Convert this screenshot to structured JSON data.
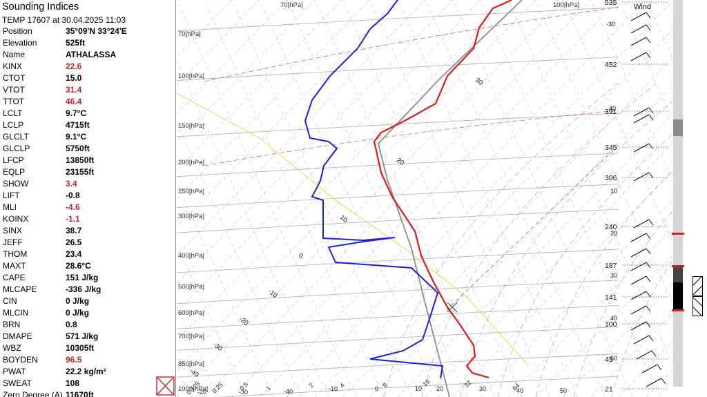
{
  "panel": {
    "title": "Sounding Indices",
    "subtitle": "TEMP 17607 at 30.04.2025 11:03",
    "rows": [
      {
        "label": "Position",
        "value": "35°09'N 33°24'E",
        "warn": false
      },
      {
        "label": "Elevation",
        "value": "525ft",
        "warn": false
      },
      {
        "label": "Name",
        "value": "ATHALASSA",
        "warn": false
      },
      {
        "label": "KINX",
        "value": "22.6",
        "warn": true
      },
      {
        "label": "CTOT",
        "value": "15.0",
        "warn": false
      },
      {
        "label": "VTOT",
        "value": "31.4",
        "warn": true
      },
      {
        "label": "TTOT",
        "value": "46.4",
        "warn": true
      },
      {
        "label": "LCLT",
        "value": "9.7°C",
        "warn": false
      },
      {
        "label": "LCLP",
        "value": "4715ft",
        "warn": false
      },
      {
        "label": "GLCLT",
        "value": "9.1°C",
        "warn": false
      },
      {
        "label": "GLCLP",
        "value": "5750ft",
        "warn": false
      },
      {
        "label": "LFCP",
        "value": "13850ft",
        "warn": false
      },
      {
        "label": "EQLP",
        "value": "23155ft",
        "warn": false
      },
      {
        "label": "SHOW",
        "value": "3.4",
        "warn": true
      },
      {
        "label": "LIFT",
        "value": "-0.8",
        "warn": false
      },
      {
        "label": "MLI",
        "value": "-4.6",
        "warn": true
      },
      {
        "label": "KOINX",
        "value": "-1.1",
        "warn": true
      },
      {
        "label": "SINX",
        "value": "38.7",
        "warn": false
      },
      {
        "label": "JEFF",
        "value": "26.5",
        "warn": false
      },
      {
        "label": "THOM",
        "value": "23.4",
        "warn": false
      },
      {
        "label": "MAXT",
        "value": "28.6°C",
        "warn": false
      },
      {
        "label": "CAPE",
        "value": "151 J/kg",
        "warn": false
      },
      {
        "label": "MLCAPE",
        "value": "-336 J/kg",
        "warn": false
      },
      {
        "label": "CIN",
        "value": "0 J/kg",
        "warn": false
      },
      {
        "label": "MLCIN",
        "value": "0 J/kg",
        "warn": false
      },
      {
        "label": "BRN",
        "value": "0.8",
        "warn": false
      },
      {
        "label": "DMAPE",
        "value": "571 J/kg",
        "warn": false
      },
      {
        "label": "WBZ",
        "value": "10305ft",
        "warn": false
      },
      {
        "label": "BOYDEN",
        "value": "96.5",
        "warn": true
      },
      {
        "label": "PWAT",
        "value": "22.2 kg/m²",
        "warn": false
      },
      {
        "label": "SWEAT",
        "value": "108",
        "warn": false
      },
      {
        "label": "Zero Degree (A)",
        "value": "11670ft",
        "warn": false
      }
    ]
  },
  "chart_data": {
    "type": "line",
    "title": "",
    "xlabel": "",
    "ylabel": "",
    "wind_label": "Wind",
    "pressure_labels": [
      "70[hPa]",
      "100[hPa]",
      "70[hPa]",
      "100[hPa]",
      "150[hPa]",
      "200[hPa]",
      "250[hPa]",
      "300[hPa]",
      "400[hPa]",
      "500[hPa]",
      "600[hPa]",
      "700[hPa]",
      "850[hPa]",
      "1000[hPa]"
    ],
    "pressure_levels": [
      70,
      100,
      70,
      100,
      150,
      200,
      250,
      300,
      400,
      500,
      600,
      700,
      850,
      1000
    ],
    "isotherm_labels": [
      "30",
      "20",
      "10",
      "0",
      "-10",
      "-20",
      "-30",
      "-40"
    ],
    "bottom_tick_labels": [
      "-40",
      "-30",
      "-20",
      "-10",
      "0",
      "10",
      "20",
      "30",
      "40",
      "50",
      "0.25",
      "0.5",
      "1",
      "2",
      "4",
      "8",
      "16",
      "32",
      "64",
      "0.125"
    ],
    "height_labels": [
      "535",
      "452",
      "391",
      "345",
      "306",
      "240",
      "187",
      "141",
      "100",
      "45",
      "21"
    ],
    "height_sub_labels": [
      "-30",
      "40",
      "10",
      "20",
      "30",
      "40",
      "50"
    ],
    "temperature_series": [
      {
        "p": 70,
        "t": 4
      },
      {
        "p": 100,
        "t": -8
      },
      {
        "p": 150,
        "t": -38
      },
      {
        "p": 200,
        "t": -58
      },
      {
        "p": 250,
        "t": -50
      },
      {
        "p": 300,
        "t": -40
      },
      {
        "p": 400,
        "t": -22
      },
      {
        "p": 500,
        "t": -10
      },
      {
        "p": 600,
        "t": 0
      },
      {
        "p": 700,
        "t": 9
      },
      {
        "p": 850,
        "t": 19
      },
      {
        "p": 1000,
        "t": 28
      }
    ],
    "dewpoint_series": [
      {
        "p": 70,
        "t": -75
      },
      {
        "p": 100,
        "t": -72
      },
      {
        "p": 150,
        "t": -70
      },
      {
        "p": 200,
        "t": -66
      },
      {
        "p": 250,
        "t": -58
      },
      {
        "p": 300,
        "t": -52
      },
      {
        "p": 350,
        "t": -30
      },
      {
        "p": 400,
        "t": -44
      },
      {
        "p": 500,
        "t": -20
      },
      {
        "p": 600,
        "t": -12
      },
      {
        "p": 700,
        "t": -6
      },
      {
        "p": 850,
        "t": -16
      },
      {
        "p": 1000,
        "t": 14
      }
    ],
    "parcel_series": [
      {
        "p": 70,
        "t": -60
      },
      {
        "p": 200,
        "t": -58
      },
      {
        "p": 300,
        "t": -34
      },
      {
        "p": 500,
        "t": -14
      },
      {
        "p": 700,
        "t": -2
      },
      {
        "p": 1000,
        "t": 8
      }
    ],
    "colors": {
      "temperature": "#e01818",
      "dewpoint": "#1a1ee0",
      "parcel": "#8c8c8c",
      "saturation": "#e8e060"
    }
  }
}
